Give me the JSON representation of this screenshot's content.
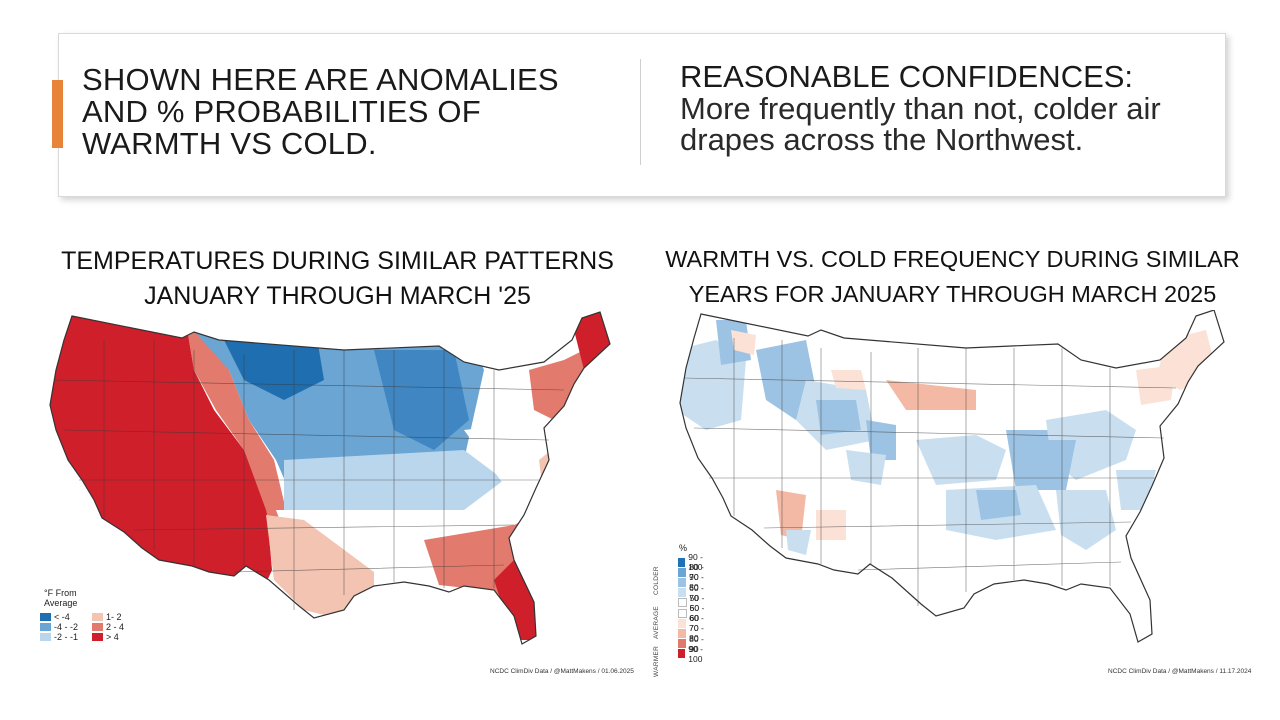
{
  "header": {
    "left_headline_lines": [
      "SHOWN HERE ARE ANOMALIES",
      "AND % PROBABILITIES OF",
      "WARMTH VS COLD."
    ],
    "right_title": "REASONABLE CONFIDENCES:",
    "right_body": "More frequently than not, colder air drapes across the Northwest.",
    "accent_color": "#e8843a"
  },
  "left_map": {
    "title_lines": [
      "TEMPERATURES DURING SIMILAR PATTERNS",
      "JANUARY THROUGH MARCH '25"
    ],
    "legend_title": "°F From Average",
    "legend": [
      {
        "label": "< -4",
        "color": "#1f6eb0"
      },
      {
        "label": "1- 2",
        "color": "#f3c4b2"
      },
      {
        "label": "-4 - -2",
        "color": "#6aa5d3"
      },
      {
        "label": "2 - 4",
        "color": "#e27a6e"
      },
      {
        "label": "-2 - -1",
        "color": "#b9d6ec"
      },
      {
        "label": "> 4",
        "color": "#cf1f2a"
      }
    ],
    "credit": "NCDC ClimDiv Data / @MattMakens / 01.06.2025"
  },
  "right_map": {
    "title_lines": [
      "WARMTH VS. COLD FREQUENCY DURING SIMILAR",
      "YEARS FOR JANUARY THROUGH MARCH 2025"
    ],
    "legend_unit": "%",
    "legend": [
      {
        "label": "90 - 100",
        "color": "#2171b5"
      },
      {
        "label": "80 - 90",
        "color": "#6aa5d3"
      },
      {
        "label": "70 - 80",
        "color": "#9cc3e4"
      },
      {
        "label": "60 - 70",
        "color": "#c9dff0"
      },
      {
        "label": "50 - 60",
        "color": "#ffffff"
      },
      {
        "label": "50 - 60",
        "color": "#ffffff"
      },
      {
        "label": "60 - 70",
        "color": "#fbe1d6"
      },
      {
        "label": "70 - 80",
        "color": "#f3b9a4"
      },
      {
        "label": "80 - 90",
        "color": "#e07a6c"
      },
      {
        "label": "90 - 100",
        "color": "#cc1f2b"
      }
    ],
    "side_labels": [
      "COLDER",
      "AVERAGE",
      "WARMER"
    ],
    "credit": "NCDC ClimDiv Data / @MattMakens / 11.17.2024"
  }
}
